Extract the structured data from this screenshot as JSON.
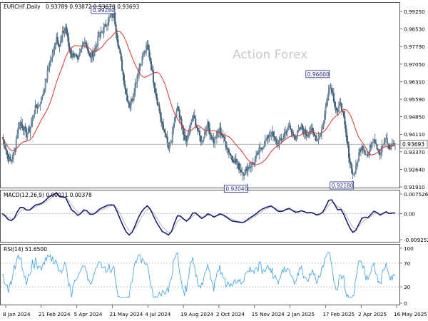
{
  "chart_data": [
    {
      "type": "candlestick",
      "symbol_label": "EURCHF,Daily",
      "ohlc_label": "0.93789 0.93872 0.93670 0.93693",
      "watermark": "Action Forex",
      "y_ticks": [
        "0.99250",
        "0.98530",
        "0.97790",
        "0.97050",
        "0.96310",
        "0.95590",
        "0.94850",
        "0.94110",
        "0.93370",
        "0.92640",
        "0.91910"
      ],
      "ylim": [
        0.9191,
        0.9925
      ],
      "current_price": "0.93693",
      "current_price_value": 0.93693,
      "x_ticks": [
        "8 Jan 2024",
        "21 Feb 2024",
        "5 Apr 2024",
        "21 May 2024",
        "4 Jul 2024",
        "19 Aug 2024",
        "2 Oct 2024",
        "15 Nov 2024",
        "2 Jan 2025",
        "17 Feb 2025",
        "2 Apr 2025",
        "16 May 2025"
      ],
      "annotations": [
        {
          "label": "0.99280",
          "value": 0.9928,
          "date_index": 37
        },
        {
          "label": "0.96600",
          "value": 0.966,
          "date_index": 108
        },
        {
          "label": "0.92040",
          "value": 0.9204,
          "date_index": 81
        },
        {
          "label": "0.92180",
          "value": 0.9218,
          "date_index": 116
        }
      ],
      "price_series": [
        0.94,
        0.936,
        0.931,
        0.93,
        0.934,
        0.942,
        0.946,
        0.944,
        0.941,
        0.943,
        0.948,
        0.952,
        0.953,
        0.956,
        0.961,
        0.967,
        0.972,
        0.976,
        0.982,
        0.978,
        0.983,
        0.986,
        0.978,
        0.974,
        0.975,
        0.971,
        0.976,
        0.981,
        0.978,
        0.973,
        0.975,
        0.978,
        0.982,
        0.984,
        0.986,
        0.989,
        0.99,
        0.991,
        0.982,
        0.974,
        0.966,
        0.958,
        0.953,
        0.956,
        0.962,
        0.968,
        0.972,
        0.975,
        0.978,
        0.972,
        0.964,
        0.957,
        0.951,
        0.944,
        0.941,
        0.935,
        0.938,
        0.947,
        0.952,
        0.946,
        0.941,
        0.938,
        0.943,
        0.949,
        0.946,
        0.941,
        0.938,
        0.942,
        0.945,
        0.941,
        0.938,
        0.941,
        0.943,
        0.94,
        0.937,
        0.934,
        0.931,
        0.93,
        0.928,
        0.926,
        0.925,
        0.927,
        0.928,
        0.929,
        0.931,
        0.934,
        0.936,
        0.938,
        0.94,
        0.942,
        0.939,
        0.937,
        0.938,
        0.94,
        0.943,
        0.944,
        0.941,
        0.94,
        0.942,
        0.944,
        0.942,
        0.941,
        0.943,
        0.941,
        0.939,
        0.941,
        0.944,
        0.952,
        0.961,
        0.96,
        0.954,
        0.95,
        0.955,
        0.947,
        0.938,
        0.93,
        0.924,
        0.927,
        0.933,
        0.937,
        0.934,
        0.932,
        0.937,
        0.94,
        0.936,
        0.933,
        0.937,
        0.939,
        0.935,
        0.937,
        0.93693
      ]
    },
    {
      "type": "line",
      "label": "MACD(12,26,9) 0.00011 0.00378",
      "y_ticks": [
        "0.007526",
        "0.00",
        "-0.009252"
      ],
      "ylim": [
        -0.009252,
        0.007526
      ]
    },
    {
      "type": "line",
      "label": "RSI(14) 51.6500",
      "y_ticks": [
        "100",
        "70",
        "30",
        "0"
      ],
      "ylim": [
        0,
        100
      ],
      "levels": [
        70,
        30
      ]
    }
  ]
}
